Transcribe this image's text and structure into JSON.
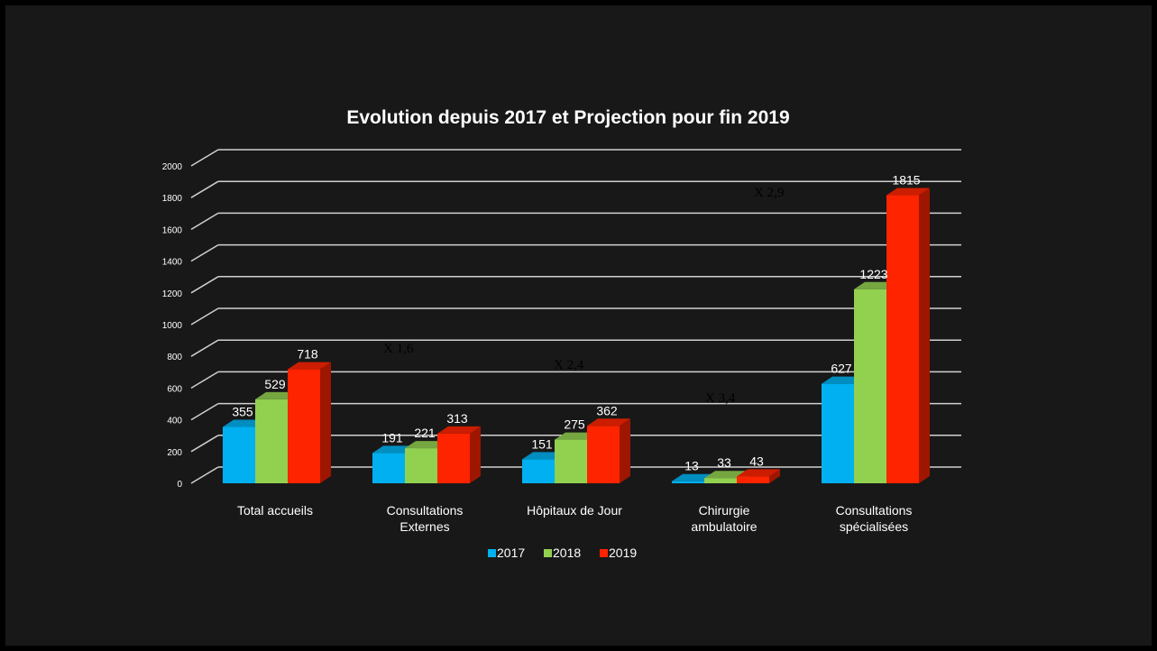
{
  "chart_data": {
    "type": "bar",
    "title": "Evolution depuis 2017 et Projection pour fin 2019",
    "categories": [
      [
        "Total accueils"
      ],
      [
        "Consultations",
        "Externes"
      ],
      [
        "Hôpitaux de Jour"
      ],
      [
        "Chirurgie",
        "ambulatoire"
      ],
      [
        "Consultations",
        "spécialisées"
      ]
    ],
    "series": [
      {
        "name": "2017",
        "color": "#00B0F0",
        "values": [
          355,
          191,
          151,
          13,
          627
        ]
      },
      {
        "name": "2018",
        "color": "#92D050",
        "values": [
          529,
          221,
          275,
          33,
          1223
        ]
      },
      {
        "name": "2019",
        "color": "#FF2400",
        "values": [
          718,
          313,
          362,
          43,
          1815
        ]
      }
    ],
    "yticks": [
      "0",
      "200",
      "400",
      "600",
      "800",
      "1000",
      "1200",
      "1400",
      "1600",
      "1800",
      "2000"
    ],
    "ylim": [
      0,
      2000
    ],
    "grid": true,
    "legend_position": "bottom",
    "annotations": [
      {
        "text": "X 1,6",
        "category": 1
      },
      {
        "text": "X 2,4",
        "category": 2
      },
      {
        "text": "X 3,4",
        "category": 3
      },
      {
        "text": "X 2,9",
        "category": 4
      }
    ]
  }
}
